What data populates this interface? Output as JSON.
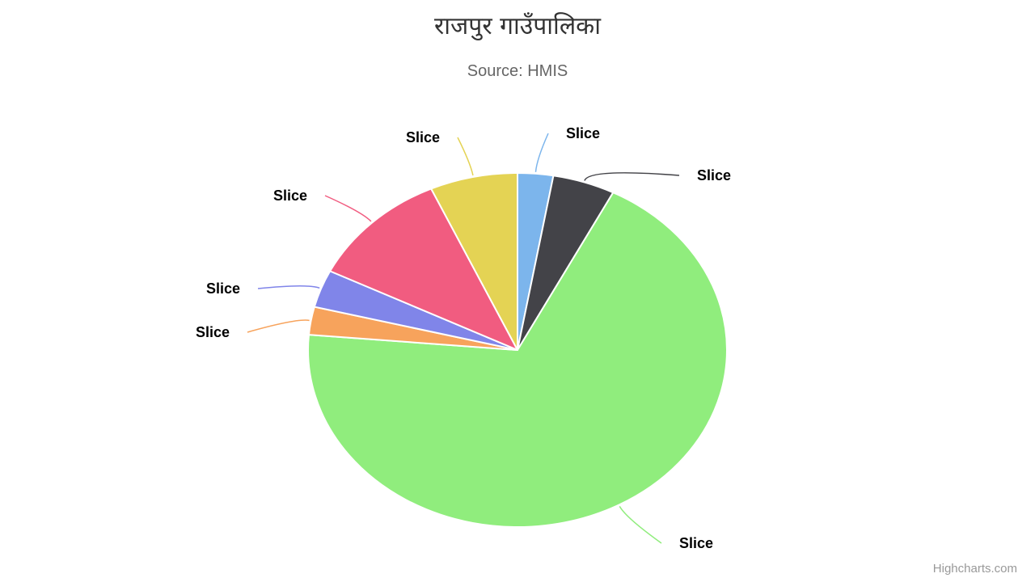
{
  "chart_data": {
    "type": "pie",
    "title": "राजपुर गाउँपालिका",
    "subtitle": "Source: HMIS",
    "slices": [
      {
        "name": "Slice",
        "value": 2.8,
        "color": "#7cb5ec"
      },
      {
        "name": "Slice",
        "value": 4.9,
        "color": "#434348"
      },
      {
        "name": "Slice",
        "value": 70.2,
        "color": "#90ed7d"
      },
      {
        "name": "Slice",
        "value": 2.6,
        "color": "#f7a35c"
      },
      {
        "name": "Slice",
        "value": 3.5,
        "color": "#8085e9"
      },
      {
        "name": "Slice",
        "value": 11.1,
        "color": "#f15c80"
      },
      {
        "name": "Slice",
        "value": 6.9,
        "color": "#e4d354"
      }
    ]
  },
  "credits": "Highcharts.com"
}
